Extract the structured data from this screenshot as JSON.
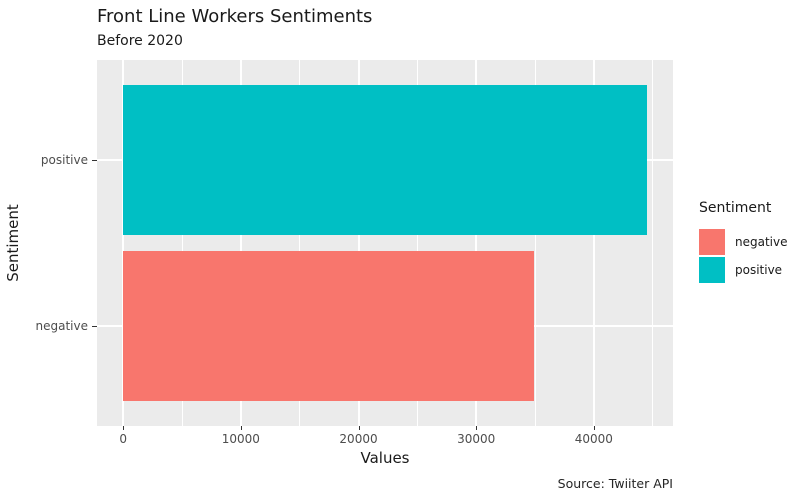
{
  "title": "Front Line Workers Sentiments",
  "subtitle": "Before 2020",
  "caption": "Source: Twiiter API",
  "chart_data": {
    "type": "bar",
    "orientation": "horizontal",
    "title": "Front Line Workers Sentiments",
    "subtitle": "Before 2020",
    "xlabel": "Values",
    "ylabel": "Sentiment",
    "categories": [
      "positive",
      "negative"
    ],
    "values": [
      44500,
      34900
    ],
    "xticks": [
      0,
      10000,
      20000,
      30000,
      40000
    ],
    "xtick_labels": [
      "0",
      "10000",
      "20000",
      "30000",
      "40000"
    ],
    "xlim": [
      -2225,
      46725
    ],
    "grid": true,
    "panel_bg": "#ebebeb",
    "grid_color": "#ffffff",
    "bar_colors": {
      "positive": "#00BFC4",
      "negative": "#F8766D"
    },
    "legend": {
      "title": "Sentiment",
      "position": "right",
      "items": [
        {
          "label": "negative",
          "color": "#F8766D"
        },
        {
          "label": "positive",
          "color": "#00BFC4"
        }
      ]
    }
  }
}
